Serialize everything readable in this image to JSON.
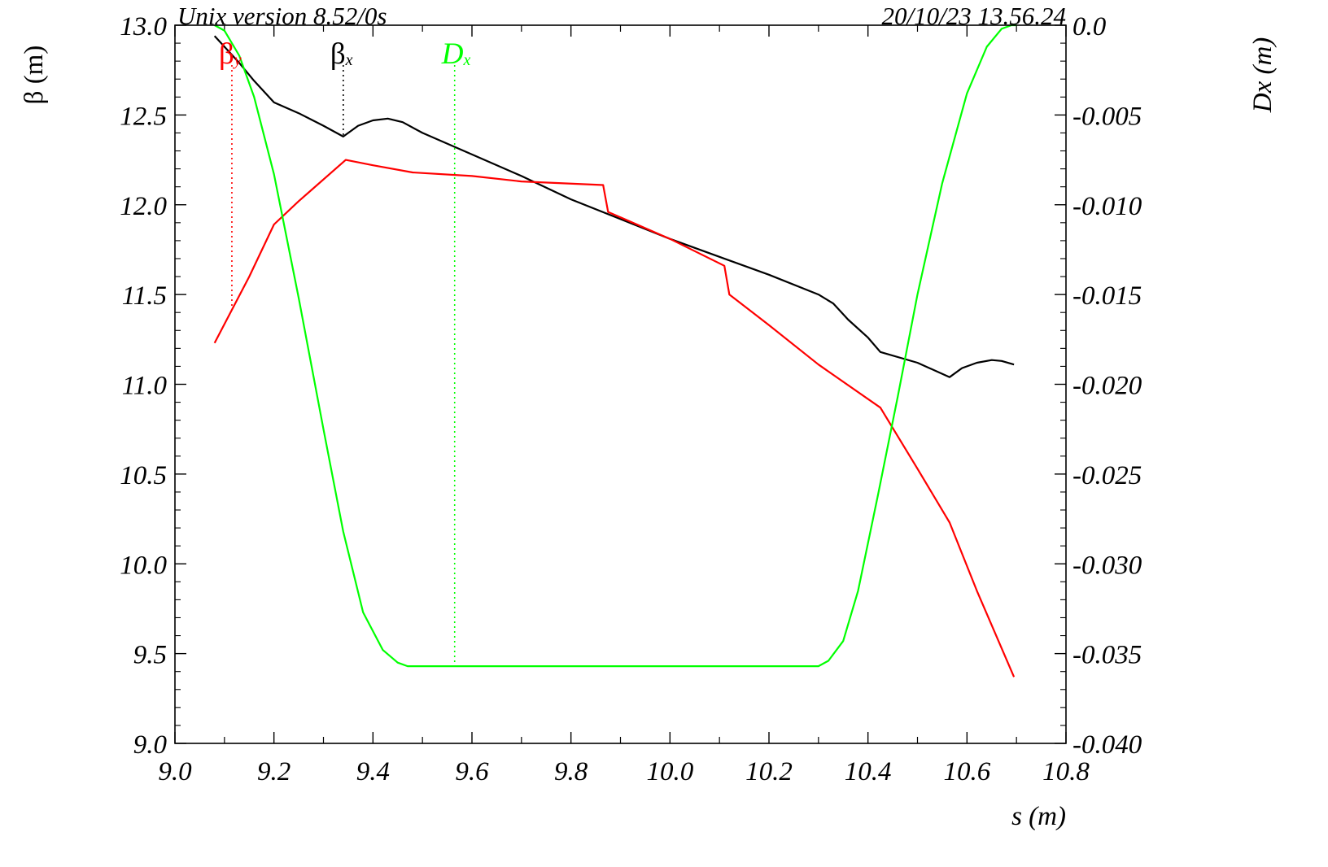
{
  "header": {
    "left": "Unix version 8.52/0s",
    "right": "20/10/23  13.56.24"
  },
  "chart_data": {
    "type": "line",
    "xlabel": "s (m)",
    "ylabel_left": "β (m)",
    "ylabel_right": "Dx (m)",
    "xlim": [
      9.0,
      10.8
    ],
    "ylim_left": [
      9.0,
      13.0
    ],
    "ylim_right": [
      -0.04,
      0.0
    ],
    "x_ticks": [
      "9.0",
      "9.2",
      "9.4",
      "9.6",
      "9.8",
      "10.0",
      "10.2",
      "10.4",
      "10.6",
      "10.8"
    ],
    "y_left_ticks": [
      "9.0",
      "9.5",
      "10.0",
      "10.5",
      "11.0",
      "11.5",
      "12.0",
      "12.5",
      "13.0"
    ],
    "y_right_ticks": [
      "-0.040",
      "-0.035",
      "-0.030",
      "-0.025",
      "-0.020",
      "-0.015",
      "-0.010",
      "-0.005",
      "0.0"
    ],
    "legend": [
      {
        "symbol": "β",
        "sub": "y",
        "color": "#ff0000",
        "x_marker": 9.115,
        "y_marker_end": 11.42
      },
      {
        "symbol": "β",
        "sub": "x",
        "color": "#000000",
        "x_marker": 9.34,
        "y_marker_end": 12.38
      },
      {
        "symbol": "D",
        "sub": "x",
        "color": "#00ff00",
        "x_marker": 9.565,
        "y_marker_end": 9.45
      }
    ],
    "series": [
      {
        "name": "βx",
        "axis": "left",
        "color": "#000000",
        "x": [
          9.08,
          9.13,
          9.16,
          9.2,
          9.25,
          9.3,
          9.34,
          9.37,
          9.4,
          9.43,
          9.46,
          9.5,
          9.6,
          9.7,
          9.8,
          9.9,
          10.0,
          10.1,
          10.2,
          10.3,
          10.33,
          10.36,
          10.4,
          10.425,
          10.5,
          10.565,
          10.59,
          10.62,
          10.65,
          10.67,
          10.695
        ],
        "y": [
          12.94,
          12.79,
          12.69,
          12.57,
          12.51,
          12.44,
          12.38,
          12.44,
          12.47,
          12.48,
          12.46,
          12.4,
          12.28,
          12.16,
          12.03,
          11.92,
          11.81,
          11.71,
          11.61,
          11.5,
          11.45,
          11.36,
          11.26,
          11.18,
          11.12,
          11.04,
          11.09,
          11.12,
          11.135,
          11.13,
          11.11
        ]
      },
      {
        "name": "βy",
        "axis": "left",
        "color": "#ff0000",
        "x": [
          9.08,
          9.15,
          9.2,
          9.25,
          9.345,
          9.4,
          9.48,
          9.6,
          9.7,
          9.865,
          9.875,
          10.0,
          10.11,
          10.12,
          10.2,
          10.3,
          10.425,
          10.5,
          10.565,
          10.62,
          10.695
        ],
        "y": [
          11.23,
          11.6,
          11.89,
          12.02,
          12.25,
          12.22,
          12.18,
          12.16,
          12.13,
          12.11,
          11.96,
          11.81,
          11.66,
          11.5,
          11.33,
          11.11,
          10.87,
          10.53,
          10.23,
          9.85,
          9.37
        ]
      },
      {
        "name": "Dx",
        "axis": "right",
        "color": "#00ff00",
        "x": [
          9.08,
          9.1,
          9.13,
          9.16,
          9.2,
          9.25,
          9.3,
          9.34,
          9.38,
          9.42,
          9.45,
          9.47,
          9.5,
          9.6,
          9.8,
          10.0,
          10.2,
          10.3,
          10.32,
          10.35,
          10.38,
          10.42,
          10.46,
          10.5,
          10.55,
          10.6,
          10.64,
          10.67,
          10.69,
          10.7
        ],
        "y": [
          0.0,
          -0.0003,
          -0.0017,
          -0.004,
          -0.0083,
          -0.0152,
          -0.0225,
          -0.0282,
          -0.0327,
          -0.0348,
          -0.0355,
          -0.0357,
          -0.0357,
          -0.0357,
          -0.0357,
          -0.0357,
          -0.0357,
          -0.0357,
          -0.0354,
          -0.0343,
          -0.0315,
          -0.0262,
          -0.0207,
          -0.015,
          -0.0088,
          -0.0038,
          -0.0012,
          -0.0002,
          0.0,
          0.0
        ]
      }
    ]
  }
}
